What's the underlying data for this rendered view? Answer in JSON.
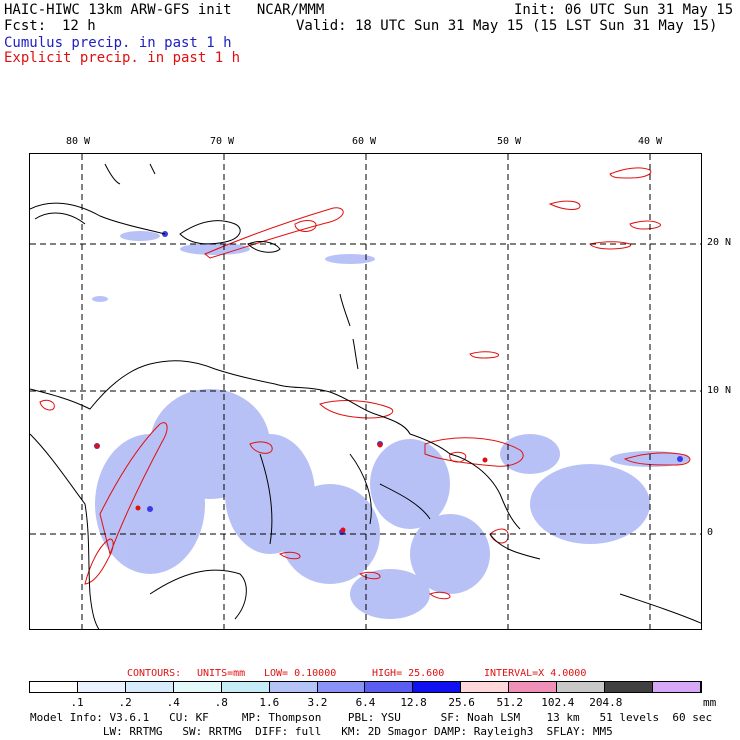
{
  "header": {
    "title": "HAIC-HIWC 13km ARW-GFS init   NCAR/MMM",
    "init": "Init: 06 UTC Sun 31 May 15",
    "fcst_label": "Fcst:",
    "fcst_value": "12 h",
    "valid": "Valid: 18 UTC Sun 31 May 15 (15 LST Sun 31 May 15)",
    "field1": "Cumulus precip. in past 1 h",
    "field2": "Explicit precip. in past 1 h"
  },
  "map": {
    "lon_labels": [
      "80 W",
      "70 W",
      "60 W",
      "50 W",
      "40 W"
    ],
    "lat_labels": [
      "20 N",
      "10 N",
      "0"
    ],
    "gridline_color": "#000000",
    "cumulus_color": "#3050e0",
    "explicit_color": "#e01010"
  },
  "contours": {
    "label": "CONTOURS:",
    "units": "UNITS=mm",
    "low": "LOW= 0.10000",
    "high": "HIGH=  25.600",
    "interval": "INTERVAL=X  4.0000"
  },
  "colorbar": {
    "unit": "mm",
    "ticks": [
      ".1",
      ".2",
      ".4",
      ".8",
      "1.6",
      "3.2",
      "6.4",
      "12.8",
      "25.6",
      "51.2",
      "102.4",
      "204.8"
    ],
    "colors": [
      "#ffffff",
      "#e8f3ff",
      "#d6ebfb",
      "#e2fafa",
      "#c6ecf5",
      "#b4c4f6",
      "#8a92f8",
      "#5a5df0",
      "#1010f0",
      "#ffd8dc",
      "#f090b8",
      "#c8c8c8",
      "#404040",
      "#d8a8f8"
    ]
  },
  "footer": {
    "line1": "Model Info: V3.6.1   CU: KF     MP: Thompson    PBL: YSU      SF: Noah LSM    13 km   51 levels  60 sec",
    "line2": "           LW: RRTMG   SW: RRTMG  DIFF: full   KM: 2D Smagor DAMP: Rayleigh3  SFLAY: MM5"
  }
}
